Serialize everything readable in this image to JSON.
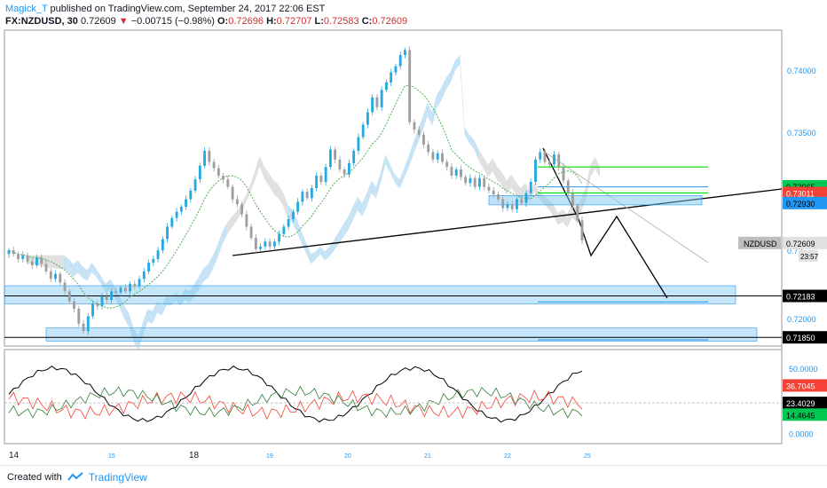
{
  "header": {
    "author": "Magick_T",
    "published": "published on TradingView.com, September 24, 2017 22:06 EST",
    "symbol": "FX:NZDUSD, 30",
    "last": "0.72609",
    "arrow": "▼",
    "change": "−0.00715 (−0.98%)",
    "o_label": "O:",
    "o_val": "0.72696",
    "h_label": "H:",
    "h_val": "0.72707",
    "l_label": "L:",
    "l_val": "0.72583",
    "c_label": "C:",
    "c_val": "0.72609"
  },
  "footer": {
    "created_with": "Created with",
    "brand": "TradingView",
    "icon": "tradingview-logo-icon"
  },
  "colors": {
    "up": "#26a9e0",
    "down": "#9e9e9e",
    "cloud": "#b3d9f2",
    "cloud_grey": "#d6d6d6",
    "zone": "#7ec8ef",
    "ma": "#4caf50",
    "green_line": "#00e000",
    "blue_line": "#2196f3",
    "red": "#f44336",
    "black": "#000000"
  },
  "chart_data": [
    {
      "type": "candlestick",
      "symbol": "NZDUSD",
      "ylim": [
        0.7178,
        0.7432
      ],
      "y_ticks": [
        "0.74000",
        "0.73500",
        "0.72",
        "0.72000"
      ],
      "x_tick_labels": [
        "14",
        "15",
        "18",
        "19",
        "20",
        "21",
        "22",
        "25"
      ],
      "price_labels": [
        {
          "value": 0.73065,
          "text": "0.73065",
          "color": "#00c853",
          "text_color": "#000000"
        },
        {
          "value": 0.73011,
          "text": "0.73011",
          "color": "#f44336",
          "text_color": "#ffffff"
        },
        {
          "value": 0.7293,
          "text": "0.72930",
          "color": "#2196f3",
          "text_color": "#000000"
        },
        {
          "value": 0.72609,
          "text": "0.72609",
          "color": "#e0e0e0",
          "text_color": "#000000"
        },
        {
          "value": 0.72183,
          "text": "0.72183",
          "color": "#000000",
          "text_color": "#ffffff"
        },
        {
          "value": 0.7185,
          "text": "0.71850",
          "color": "#000000",
          "text_color": "#ffffff"
        }
      ],
      "symbol_tag": "NZDUSD",
      "countdown": "23:57",
      "support_zones": [
        {
          "from": 0.7212,
          "to": 0.72265
        },
        {
          "from": 0.7182,
          "to": 0.71925
        }
      ],
      "closes": [
        0.7255,
        0.7252,
        0.7248,
        0.7251,
        0.7246,
        0.7243,
        0.7249,
        0.7244,
        0.7238,
        0.7232,
        0.7236,
        0.7229,
        0.7222,
        0.7214,
        0.7208,
        0.7196,
        0.719,
        0.7202,
        0.7212,
        0.721,
        0.7218,
        0.7215,
        0.7222,
        0.7221,
        0.7225,
        0.7222,
        0.7228,
        0.7226,
        0.7232,
        0.7238,
        0.7245,
        0.7248,
        0.7255,
        0.7264,
        0.7274,
        0.7281,
        0.7286,
        0.729,
        0.7296,
        0.7303,
        0.7312,
        0.7323,
        0.7335,
        0.7326,
        0.7321,
        0.7315,
        0.7312,
        0.7306,
        0.7296,
        0.7292,
        0.7284,
        0.7274,
        0.7265,
        0.7256,
        0.7258,
        0.7262,
        0.7258,
        0.7262,
        0.7268,
        0.7274,
        0.728,
        0.7286,
        0.7294,
        0.7302,
        0.7297,
        0.7305,
        0.7315,
        0.731,
        0.7322,
        0.7336,
        0.7328,
        0.732,
        0.7316,
        0.7325,
        0.7335,
        0.7346,
        0.7356,
        0.7366,
        0.7378,
        0.737,
        0.7384,
        0.739,
        0.7398,
        0.7403,
        0.7412,
        0.7416,
        0.7358,
        0.7352,
        0.7348,
        0.734,
        0.7334,
        0.7328,
        0.7333,
        0.7326,
        0.7322,
        0.7315,
        0.732,
        0.7314,
        0.7309,
        0.7313,
        0.7306,
        0.7313,
        0.7306,
        0.7303,
        0.73,
        0.7296,
        0.7289,
        0.7292,
        0.7288,
        0.7296,
        0.7293,
        0.7301,
        0.731,
        0.7328,
        0.7334,
        0.7326,
        0.7324,
        0.7332,
        0.7322,
        0.7311,
        0.7301,
        0.7291,
        0.7279,
        0.7263
      ]
    },
    {
      "type": "line",
      "name": "indicator",
      "ylim": [
        -5,
        60
      ],
      "y_ticks": [
        "50.0000",
        "0.0000"
      ],
      "value_labels": [
        {
          "value": 36.7045,
          "text": "36.7045",
          "color": "#f44336",
          "text_color": "#ffffff"
        },
        {
          "value": 23.4029,
          "text": "23.4029",
          "color": "#000000",
          "text_color": "#ffffff"
        },
        {
          "value": 14.4645,
          "text": "14.4645",
          "color": "#00c853",
          "text_color": "#000000"
        }
      ],
      "dashed_level": 23.4029
    }
  ]
}
